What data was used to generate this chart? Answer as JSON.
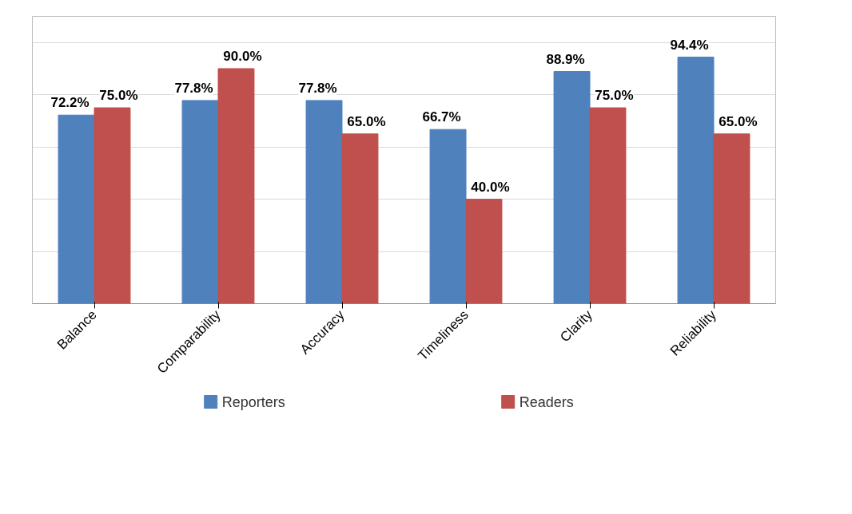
{
  "chart_data": {
    "type": "bar",
    "categories": [
      "Balance",
      "Comparability",
      "Accuracy",
      "Timeliness",
      "Clarity",
      "Reliability"
    ],
    "series": [
      {
        "name": "Reporters",
        "color": "#4f81bd",
        "values": [
          72.2,
          77.8,
          77.8,
          66.7,
          88.9,
          94.4
        ],
        "value_labels": [
          "72.2%",
          "77.8%",
          "77.8%",
          "66.7%",
          "88.9%",
          "94.4%"
        ]
      },
      {
        "name": "Readers",
        "color": "#c0504d",
        "values": [
          75.0,
          90.0,
          65.0,
          40.0,
          75.0,
          65.0
        ],
        "value_labels": [
          "75.0%",
          "90.0%",
          "65.0%",
          "40.0%",
          "75.0%",
          "65.0%"
        ]
      }
    ],
    "ylim": [
      0,
      110
    ],
    "grid": "y",
    "tick_labels": "x",
    "legend": "bottom"
  }
}
